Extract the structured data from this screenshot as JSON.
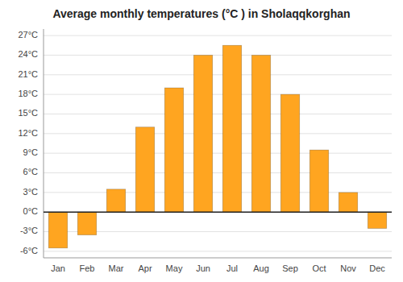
{
  "chart_data": {
    "type": "bar",
    "title": "Average monthly temperatures (°C ) in Sholaqqkorghan",
    "categories": [
      "Jan",
      "Feb",
      "Mar",
      "Apr",
      "May",
      "Jun",
      "Jul",
      "Aug",
      "Sep",
      "Oct",
      "Nov",
      "Dec"
    ],
    "values": [
      -5.5,
      -3.5,
      3.5,
      13.0,
      19.0,
      24.0,
      25.5,
      24.0,
      18.0,
      9.5,
      3.0,
      -2.5
    ],
    "color": "#FFA520",
    "ylim": [
      -7,
      28
    ],
    "yticks": [
      {
        "value": -6,
        "label": "-6°C"
      },
      {
        "value": -3,
        "label": "-3°C"
      },
      {
        "value": 0,
        "label": "0°C"
      },
      {
        "value": 3,
        "label": "3°C"
      },
      {
        "value": 6,
        "label": "6°C"
      },
      {
        "value": 9,
        "label": "9°C"
      },
      {
        "value": 12,
        "label": "12°C"
      },
      {
        "value": 15,
        "label": "15°C"
      },
      {
        "value": 18,
        "label": "18°C"
      },
      {
        "value": 21,
        "label": "21°C"
      },
      {
        "value": 24,
        "label": "24°C"
      },
      {
        "value": 27,
        "label": "27°C"
      }
    ],
    "grid": true
  }
}
